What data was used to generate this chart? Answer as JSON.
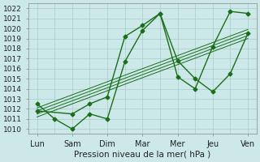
{
  "xlabel": "Pression niveau de la mer( hPa )",
  "ylim": [
    1009.5,
    1022.5
  ],
  "yticks": [
    1010,
    1011,
    1012,
    1013,
    1014,
    1015,
    1016,
    1017,
    1018,
    1019,
    1020,
    1021,
    1022
  ],
  "xtick_labels": [
    "Lun",
    "Sam",
    "Dim",
    "Mar",
    "Mer",
    "Jeu",
    "Ven"
  ],
  "xtick_pos": [
    0,
    2,
    4,
    6,
    8,
    10,
    12
  ],
  "bg_color": "#cce8e8",
  "grid_color": "#aacccc",
  "line_color": "#1a6e1a",
  "line1_x": [
    0,
    1,
    2,
    3,
    4,
    5,
    6,
    7,
    8,
    9,
    10,
    11,
    12
  ],
  "line1_y": [
    1012.5,
    1011.0,
    1010.0,
    1011.5,
    1011.0,
    1016.7,
    1019.8,
    1021.5,
    1016.8,
    1015.0,
    1013.7,
    1015.5,
    1019.5
  ],
  "line2_x": [
    0,
    2,
    3,
    4,
    5,
    6,
    7,
    8,
    9,
    10,
    11,
    12
  ],
  "line2_y": [
    1011.8,
    1011.5,
    1012.5,
    1013.2,
    1019.2,
    1020.3,
    1021.5,
    1015.2,
    1014.0,
    1018.2,
    1021.7,
    1021.5
  ],
  "trend_lines": [
    {
      "x": [
        0,
        12
      ],
      "y": [
        1011.2,
        1019.0
      ]
    },
    {
      "x": [
        0,
        12
      ],
      "y": [
        1011.5,
        1019.3
      ]
    },
    {
      "x": [
        0,
        12
      ],
      "y": [
        1011.8,
        1019.6
      ]
    },
    {
      "x": [
        0,
        12
      ],
      "y": [
        1012.1,
        1019.9
      ]
    }
  ],
  "marker": "D",
  "markersize": 2.5,
  "linewidth": 1.0
}
